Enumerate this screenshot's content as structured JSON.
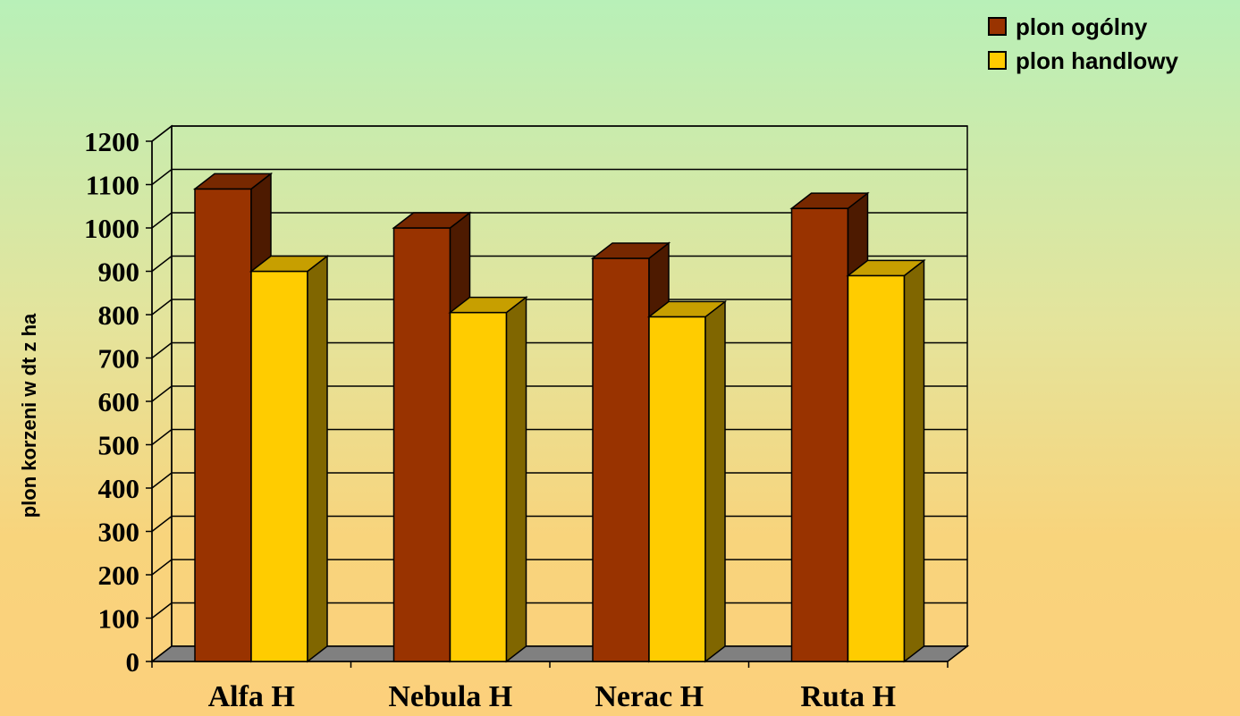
{
  "chart_data": {
    "type": "bar",
    "variant": "3d-clustered",
    "categories": [
      "Alfa  H",
      "Nebula H",
      "Nerac H",
      "Ruta H"
    ],
    "series": [
      {
        "name": "plon ogólny",
        "values": [
          1090,
          1000,
          930,
          1045
        ],
        "color": "#993300"
      },
      {
        "name": "plon handlowy",
        "values": [
          900,
          805,
          795,
          890
        ],
        "color": "#ffcc00"
      }
    ],
    "ylabel": "plon korzeni w dt z ha",
    "xlabel": "",
    "title": "",
    "ylim": [
      0,
      1200
    ],
    "yticks": [
      0,
      100,
      200,
      300,
      400,
      500,
      600,
      700,
      800,
      900,
      1000,
      1100,
      1200
    ],
    "grid": true,
    "legend_position": "top-right",
    "floor_color": "#808080"
  }
}
